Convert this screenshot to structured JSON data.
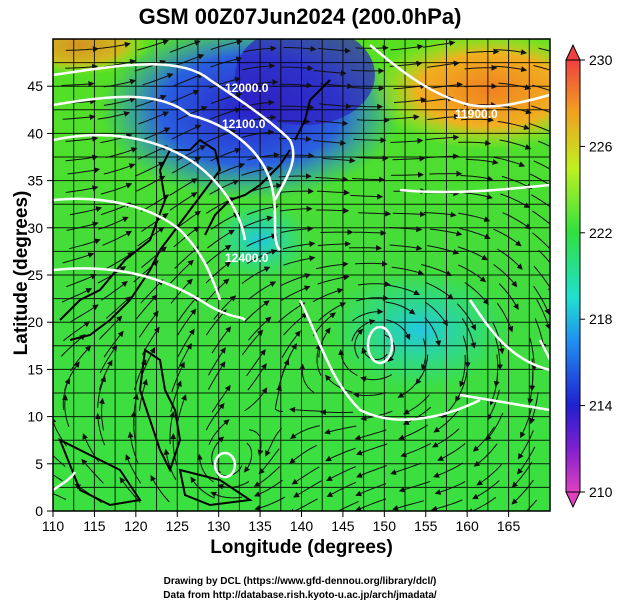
{
  "title": "GSM 00Z07Jun2024 (200.0hPa)",
  "x_axis": {
    "label": "Longitude (degrees)",
    "range": [
      110,
      170
    ],
    "tick_labels": [
      "110",
      "115",
      "120",
      "125",
      "130",
      "135",
      "140",
      "145",
      "150",
      "155",
      "160",
      "165"
    ]
  },
  "y_axis": {
    "label": "Latitude  (degrees)",
    "range": [
      0,
      50
    ],
    "tick_labels": [
      "0",
      "5",
      "10",
      "15",
      "20",
      "25",
      "30",
      "35",
      "40",
      "45"
    ]
  },
  "colorbar": {
    "range": [
      210,
      230
    ],
    "tick_labels": [
      "210",
      "214",
      "218",
      "222",
      "226",
      "230"
    ],
    "colors": [
      "#e040c0",
      "#2020d0",
      "#2090f0",
      "#20e0d0",
      "#30e040",
      "#c0f020",
      "#f0a020",
      "#f04040"
    ]
  },
  "contour_labels": [
    "12000.0",
    "12100.0",
    "12400.0",
    "11900.0"
  ],
  "credits": [
    "Drawing by DCL (https://www.gfd-dennou.org/library/dcl/)",
    "Data from http://database.rish.kyoto-u.ac.jp/arch/jmadata/"
  ]
}
